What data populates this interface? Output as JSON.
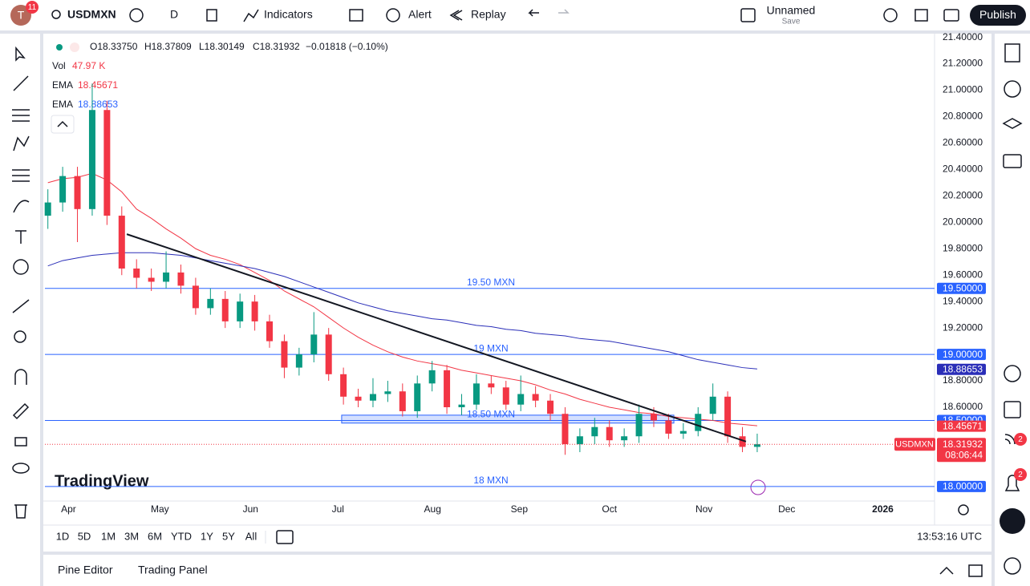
{
  "toolbar": {
    "avatar": "T",
    "notifications": "11",
    "symbol": "USDMXN",
    "interval": "D",
    "indicators": "Indicators",
    "alert": "Alert",
    "replay": "Replay",
    "layout_name": "Unnamed",
    "save": "Save",
    "publish": "Publish"
  },
  "legend": {
    "ohlc": [
      "O18.33750",
      "H18.37809",
      "L18.30149",
      "C18.31932",
      "−0.01818 (−0.10%)"
    ],
    "volume": {
      "label": "Vol",
      "value": "47.97 K"
    },
    "emas": [
      {
        "label": "EMA",
        "value": "18.45671",
        "color": "#f23645"
      },
      {
        "label": "EMA",
        "value": "18.88653",
        "color": "#2962ff"
      }
    ]
  },
  "logo": "TradingView",
  "chart_data": {
    "type": "candlestick",
    "categories": [
      null,
      null,
      null,
      null,
      null,
      null,
      null,
      null,
      null,
      null,
      null,
      null,
      null,
      null,
      null,
      null,
      null,
      null,
      null,
      null,
      null,
      null,
      null,
      null,
      null,
      null,
      null,
      null,
      null,
      null,
      null,
      null,
      null,
      null,
      null,
      null,
      null,
      null,
      null,
      null,
      null,
      null,
      null,
      null,
      null,
      null,
      null,
      null,
      null
    ],
    "open": [
      20.05,
      20.15,
      20.35,
      20.1,
      20.85,
      20.05,
      19.65,
      19.58,
      19.55,
      19.62,
      19.52,
      19.35,
      19.42,
      19.25,
      19.4,
      19.25,
      19.1,
      18.9,
      19.0,
      19.15,
      18.85,
      18.68,
      18.65,
      18.7,
      18.72,
      18.57,
      18.78,
      18.88,
      18.6,
      18.62,
      18.78,
      18.75,
      18.62,
      18.7,
      18.65,
      18.55,
      18.32,
      18.38,
      18.45,
      18.35,
      18.38,
      18.55,
      18.5,
      18.4,
      18.42,
      18.55,
      18.68,
      18.38,
      18.3
    ],
    "high": [
      20.25,
      20.42,
      20.42,
      21.05,
      20.92,
      20.12,
      19.72,
      19.65,
      19.78,
      19.68,
      19.58,
      19.5,
      19.48,
      19.46,
      19.45,
      19.3,
      19.15,
      19.05,
      19.32,
      19.2,
      18.9,
      18.74,
      18.82,
      18.8,
      18.78,
      18.84,
      18.95,
      18.92,
      18.7,
      18.85,
      18.84,
      18.8,
      18.84,
      18.76,
      18.7,
      18.6,
      18.44,
      18.52,
      18.5,
      18.44,
      18.62,
      18.6,
      18.55,
      18.48,
      18.6,
      18.78,
      18.72,
      18.45,
      18.4
    ],
    "low": [
      19.95,
      20.08,
      19.85,
      20.05,
      19.98,
      19.6,
      19.5,
      19.48,
      19.5,
      19.46,
      19.3,
      19.3,
      19.2,
      19.2,
      19.18,
      19.05,
      18.82,
      18.84,
      18.94,
      18.8,
      18.62,
      18.6,
      18.6,
      18.64,
      18.53,
      18.52,
      18.72,
      18.55,
      18.54,
      18.58,
      18.7,
      18.58,
      18.57,
      18.6,
      18.5,
      18.24,
      18.26,
      18.32,
      18.3,
      18.3,
      18.33,
      18.45,
      18.36,
      18.36,
      18.38,
      18.5,
      18.33,
      18.26,
      18.26
    ],
    "close": [
      20.15,
      20.35,
      20.1,
      20.85,
      20.05,
      19.65,
      19.58,
      19.55,
      19.62,
      19.52,
      19.35,
      19.42,
      19.25,
      19.4,
      19.25,
      19.1,
      18.9,
      19.0,
      19.15,
      18.85,
      18.68,
      18.65,
      18.7,
      18.72,
      18.57,
      18.78,
      18.88,
      18.6,
      18.62,
      18.78,
      18.75,
      18.62,
      18.7,
      18.65,
      18.55,
      18.32,
      18.38,
      18.45,
      18.35,
      18.38,
      18.55,
      18.5,
      18.4,
      18.42,
      18.55,
      18.68,
      18.38,
      18.3,
      18.32
    ],
    "up_color": "#089981",
    "down_color": "#f23645",
    "series": [
      {
        "name": "EMA",
        "color": "#f23645",
        "values": [
          20.3,
          20.33,
          20.34,
          20.37,
          20.32,
          20.23,
          20.1,
          20.03,
          19.95,
          19.88,
          19.8,
          19.75,
          19.72,
          19.68,
          19.62,
          19.56,
          19.48,
          19.42,
          19.36,
          19.28,
          19.2,
          19.13,
          19.07,
          19.02,
          18.98,
          18.95,
          18.93,
          18.91,
          18.88,
          18.86,
          18.84,
          18.82,
          18.8,
          18.77,
          18.73,
          18.7,
          18.66,
          18.63,
          18.6,
          18.58,
          18.56,
          18.55,
          18.53,
          18.52,
          18.51,
          18.5,
          18.48,
          18.47,
          18.46
        ]
      },
      {
        "name": "EMA",
        "color": "#2a2eb8",
        "values": [
          19.67,
          19.71,
          19.73,
          19.75,
          19.76,
          19.77,
          19.77,
          19.77,
          19.76,
          19.75,
          19.73,
          19.71,
          19.69,
          19.67,
          19.65,
          19.62,
          19.59,
          19.55,
          19.51,
          19.47,
          19.43,
          19.39,
          19.36,
          19.33,
          19.31,
          19.29,
          19.27,
          19.26,
          19.24,
          19.22,
          19.21,
          19.19,
          19.18,
          19.16,
          19.15,
          19.14,
          19.12,
          19.11,
          19.1,
          19.08,
          19.06,
          19.04,
          19.02,
          18.99,
          18.96,
          18.94,
          18.92,
          18.9,
          18.89
        ]
      }
    ],
    "xlim": [
      -0.2,
      60
    ],
    "xticks": [
      {
        "value": 1.4,
        "label": "Apr"
      },
      {
        "value": 7.58,
        "label": "May"
      },
      {
        "value": 13.71,
        "label": "Jun"
      },
      {
        "value": 19.63,
        "label": "Jul"
      },
      {
        "value": 26.03,
        "label": "Aug"
      },
      {
        "value": 31.9,
        "label": "Sep"
      },
      {
        "value": 38.0,
        "label": "Oct"
      },
      {
        "value": 44.4,
        "label": "Nov"
      },
      {
        "value": 50.0,
        "label": "Dec"
      },
      {
        "value": 56.5,
        "label": "2026"
      }
    ],
    "ylim": [
      17.89,
      21.44
    ],
    "yticks": [
      {
        "value": 21.4,
        "label": "21.40000"
      },
      {
        "value": 21.2,
        "label": "21.20000"
      },
      {
        "value": 21.0,
        "label": "21.00000"
      },
      {
        "value": 20.8,
        "label": "20.80000"
      },
      {
        "value": 20.6,
        "label": "20.60000"
      },
      {
        "value": 20.4,
        "label": "20.40000"
      },
      {
        "value": 20.2,
        "label": "20.20000"
      },
      {
        "value": 20.0,
        "label": "20.00000"
      },
      {
        "value": 19.8,
        "label": "19.80000"
      },
      {
        "value": 19.6,
        "label": "19.60000"
      },
      {
        "value": 19.4,
        "label": "19.40000"
      },
      {
        "value": 19.2,
        "label": "19.20000"
      },
      {
        "value": 18.8,
        "label": "18.80000"
      },
      {
        "value": 18.6,
        "label": "18.60000"
      }
    ],
    "grid": false,
    "hlines": [
      {
        "value": 19.5,
        "label": "19.50 MXN",
        "axis_label": "19.50000"
      },
      {
        "value": 19.0,
        "label": "19 MXN",
        "axis_label": "19.00000"
      },
      {
        "value": 18.5,
        "label": "18.50 MXN",
        "axis_label": "18.50000"
      },
      {
        "value": 18.0,
        "label": "18 MXN",
        "axis_label": "18.00000"
      }
    ],
    "hline_color": "#2962ff",
    "trendline": {
      "x": [
        5.34,
        47.24
      ],
      "y": [
        19.91,
        18.34
      ]
    },
    "zone": {
      "x": [
        19.88,
        42.36
      ],
      "y": [
        18.54,
        18.48
      ]
    },
    "price_badges": [
      {
        "value": 18.88653,
        "label": "18.88653",
        "color": "#2a2eb8"
      },
      {
        "value": 18.45671,
        "label": "18.45671",
        "color": "#f23645"
      }
    ],
    "last_price": {
      "value": 18.31932,
      "label": "18.31932",
      "symbol": "USDMXN",
      "countdown": "08:06:44",
      "color": "#f23645"
    }
  },
  "ranges": [
    "1D",
    "5D",
    "1M",
    "3M",
    "6M",
    "YTD",
    "1Y",
    "5Y",
    "All"
  ],
  "clock": "13:53:16 UTC",
  "panels": [
    "Pine Editor",
    "Trading Panel"
  ],
  "sidebar_badges": [
    "2",
    "2"
  ]
}
